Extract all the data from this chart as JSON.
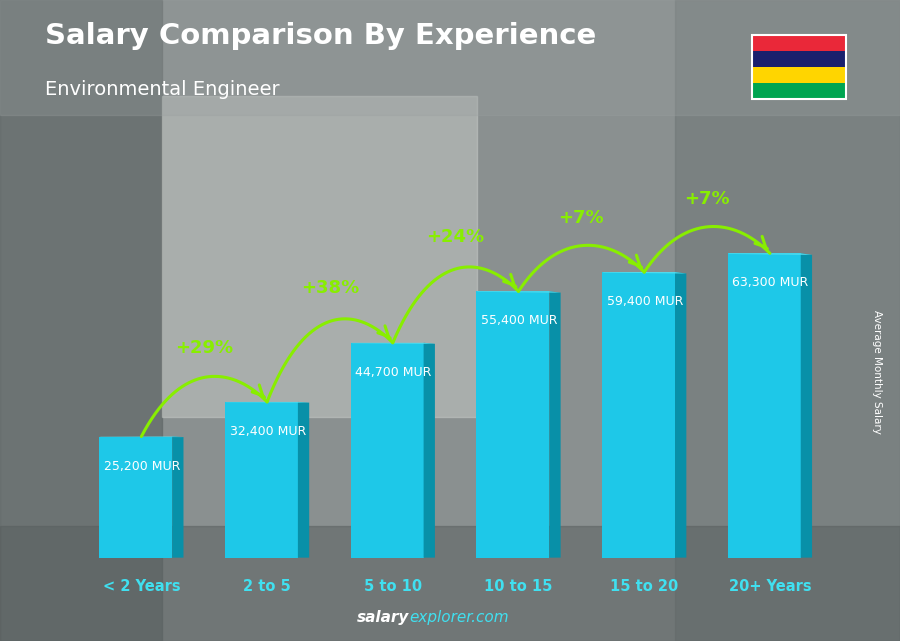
{
  "title_line1": "Salary Comparison By Experience",
  "title_line2": "Environmental Engineer",
  "categories": [
    "< 2 Years",
    "2 to 5",
    "5 to 10",
    "10 to 15",
    "15 to 20",
    "20+ Years"
  ],
  "values": [
    25200,
    32400,
    44700,
    55400,
    59400,
    63300
  ],
  "labels": [
    "25,200 MUR",
    "32,400 MUR",
    "44,700 MUR",
    "55,400 MUR",
    "59,400 MUR",
    "63,300 MUR"
  ],
  "pct_changes": [
    "+29%",
    "+38%",
    "+24%",
    "+7%",
    "+7%"
  ],
  "bar_color_main": "#1EC8E8",
  "bar_color_dark": "#0890A8",
  "bar_color_light": "#70E8FF",
  "bar_color_top": "#55DDEE",
  "background_color": "#7a8a8a",
  "title_color": "#ffffff",
  "subtitle_color": "#ffffff",
  "label_color": "#ffffff",
  "pct_color": "#88EE00",
  "xlabel_color": "#40E0F0",
  "ylabel_text": "Average Monthly Salary",
  "ylim_max": 80000,
  "arrow_color": "#88EE00",
  "footer_salary_color": "#ffffff",
  "footer_explorer_color": "#40E0F0",
  "flag_colors": [
    "#EA2839",
    "#1A206D",
    "#FFD500",
    "#00A551"
  ]
}
